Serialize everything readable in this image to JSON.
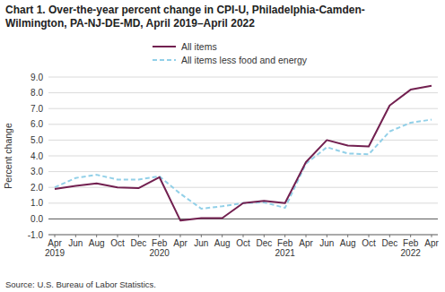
{
  "chart_data": {
    "type": "line",
    "title": [
      "Chart 1. Over-the-year percent change in CPI-U, Philadelphia-Camden-",
      "Wilmington, PA-NJ-DE-MD,  April 2019–April 2022"
    ],
    "ylabel": "Percent change",
    "source": "Source: U.S. Bureau of Labor Statistics.",
    "categories": [
      "Apr\n2019",
      "Jun",
      "Aug",
      "Oct",
      "Dec",
      "Feb\n2020",
      "Apr",
      "Jun",
      "Aug",
      "Oct",
      "Dec",
      "Feb\n2021",
      "Apr",
      "Jun",
      "Aug",
      "Oct",
      "Dec",
      "Feb\n2022",
      "Apr"
    ],
    "series": [
      {
        "name": "All items",
        "color": "#722050",
        "line_style": "solid",
        "values": [
          1.9,
          2.1,
          2.25,
          2.0,
          1.95,
          2.65,
          -0.1,
          0.05,
          0.05,
          1.0,
          1.15,
          1.0,
          3.6,
          5.0,
          4.65,
          4.6,
          7.2,
          8.2,
          8.45
        ]
      },
      {
        "name": "All items less food and energy",
        "color": "#92d0e8",
        "line_style": "dashed",
        "values": [
          2.0,
          2.6,
          2.8,
          2.5,
          2.5,
          2.7,
          1.6,
          0.65,
          0.8,
          1.0,
          1.05,
          0.7,
          3.5,
          4.55,
          4.15,
          4.1,
          5.55,
          6.1,
          6.3
        ]
      }
    ],
    "ylim": [
      -1.0,
      9.0
    ],
    "yticks": [
      {
        "value": -1.0,
        "label": "-1.0"
      },
      {
        "value": 0.0,
        "label": "0.0"
      },
      {
        "value": 1.0,
        "label": "1.0"
      },
      {
        "value": 2.0,
        "label": "2.0"
      },
      {
        "value": 3.0,
        "label": "3.0"
      },
      {
        "value": 4.0,
        "label": "4.0"
      },
      {
        "value": 5.0,
        "label": "5.0"
      },
      {
        "value": 6.0,
        "label": "6.0"
      },
      {
        "value": 7.0,
        "label": "7.0"
      },
      {
        "value": 8.0,
        "label": "8.0"
      },
      {
        "value": 9.0,
        "label": "9.0"
      }
    ],
    "grid": true,
    "legend": "top"
  }
}
